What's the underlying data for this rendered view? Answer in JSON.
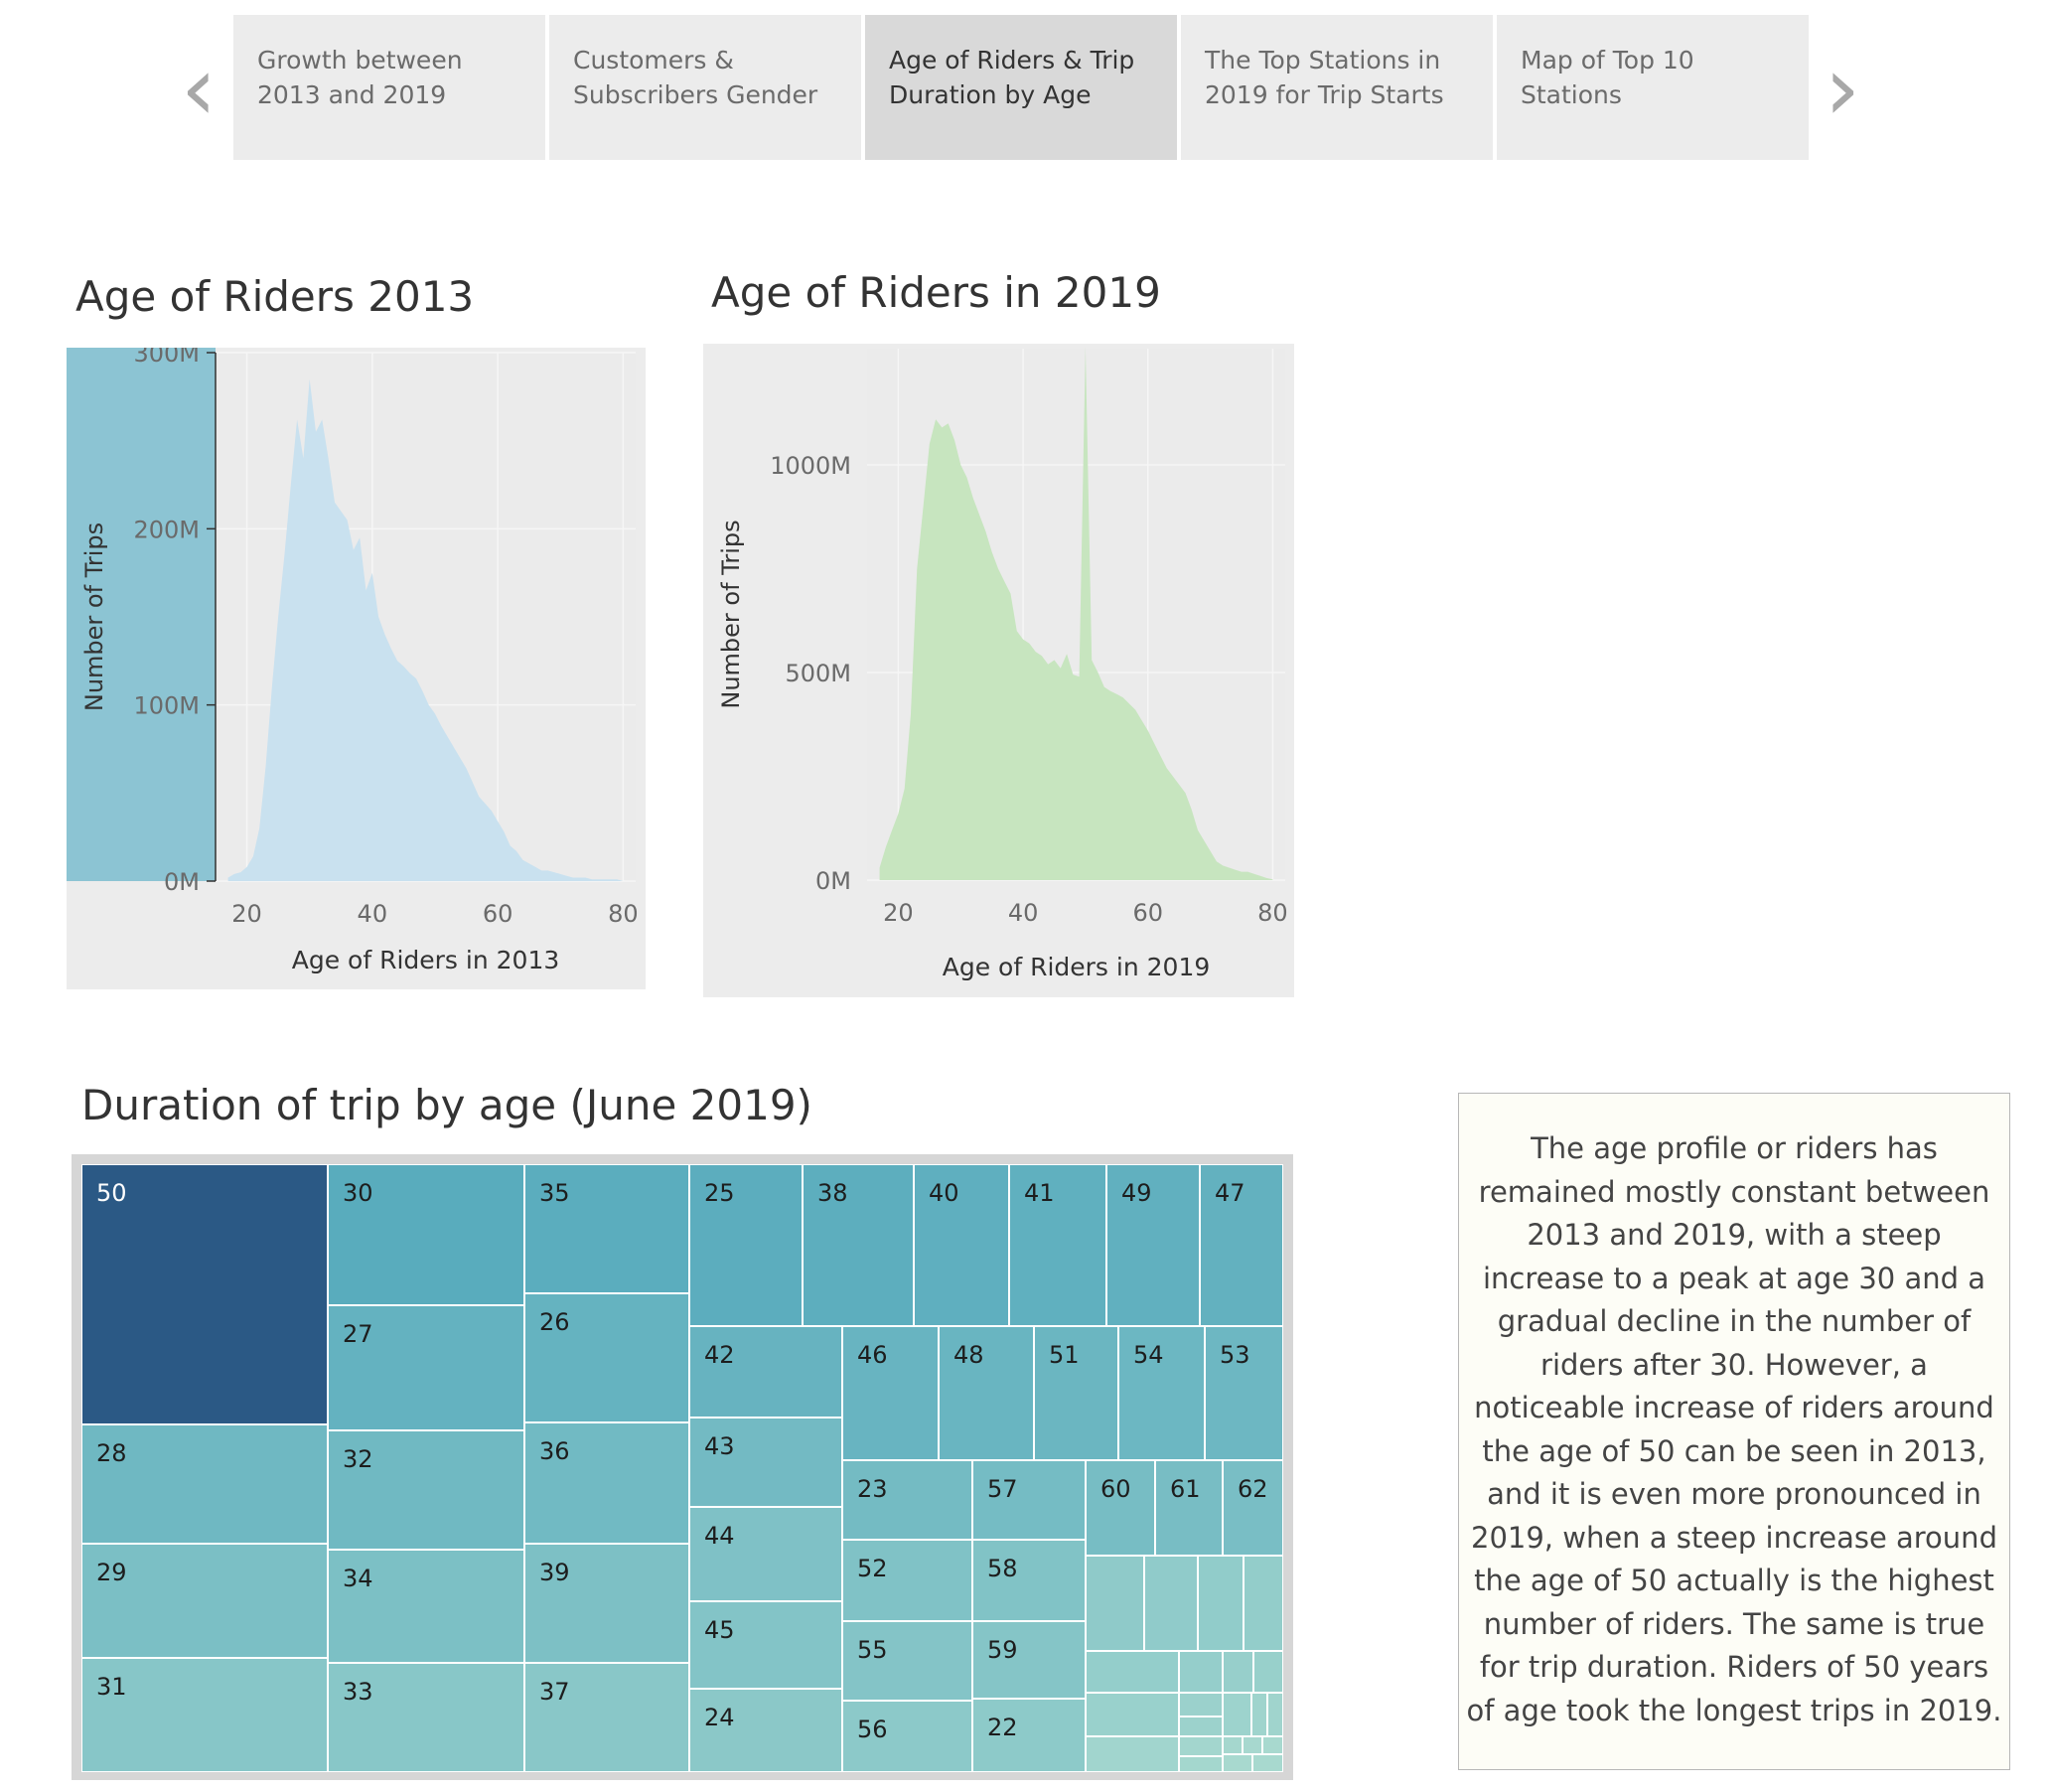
{
  "nav": {
    "prev_icon": "chevron-left-icon",
    "next_icon": "chevron-right-icon",
    "story_points": [
      {
        "label": "Growth between 2013 and  2019",
        "active": false
      },
      {
        "label": "Customers & Subscribers Gender",
        "active": false
      },
      {
        "label": "Age of Riders & Trip Duration by Age",
        "active": true
      },
      {
        "label": "The Top Stations in 2019 for Trip Starts",
        "active": false
      },
      {
        "label": "Map of Top 10 Stations",
        "active": false
      }
    ]
  },
  "chart_data": [
    {
      "type": "area",
      "title": "Age of Riders 2013",
      "xlabel": "Age of Riders in 2013",
      "ylabel": "Number of Trips",
      "xlim": [
        15,
        82
      ],
      "ylim": [
        0,
        300
      ],
      "xticks": [
        "20",
        "40",
        "60",
        "80"
      ],
      "yticks": [
        "0M",
        "100M",
        "200M",
        "300M"
      ],
      "color": "#c9e1ef",
      "highlight_color": "#8cc4d3",
      "grid": true,
      "x": [
        17,
        18,
        19,
        20,
        21,
        22,
        23,
        24,
        25,
        26,
        27,
        28,
        29,
        30,
        31,
        32,
        33,
        34,
        35,
        36,
        37,
        38,
        39,
        40,
        41,
        42,
        43,
        44,
        45,
        46,
        47,
        48,
        49,
        50,
        51,
        52,
        53,
        54,
        55,
        56,
        57,
        58,
        59,
        60,
        61,
        62,
        63,
        64,
        65,
        66,
        67,
        68,
        69,
        70,
        71,
        72,
        73,
        74,
        75,
        76,
        77,
        78,
        79,
        80
      ],
      "y": [
        2,
        4,
        5,
        8,
        14,
        30,
        65,
        110,
        150,
        185,
        225,
        262,
        240,
        285,
        255,
        262,
        240,
        215,
        210,
        205,
        188,
        195,
        165,
        175,
        150,
        140,
        132,
        125,
        122,
        118,
        115,
        108,
        100,
        95,
        88,
        82,
        76,
        70,
        64,
        56,
        48,
        44,
        40,
        34,
        28,
        20,
        17,
        12,
        10,
        8,
        6,
        6,
        5,
        4,
        3,
        2,
        2,
        2,
        1,
        1,
        1,
        1,
        1,
        0
      ]
    },
    {
      "type": "area",
      "title": "Age of Riders in 2019",
      "xlabel": "Age of Riders in 2019",
      "ylabel": "Number of Trips",
      "xlim": [
        15,
        82
      ],
      "ylim": [
        0,
        1280
      ],
      "xticks": [
        "20",
        "40",
        "60",
        "80"
      ],
      "yticks": [
        "0M",
        "500M",
        "1000M"
      ],
      "color": "#c7e5bf",
      "grid": true,
      "x": [
        17,
        18,
        19,
        20,
        21,
        22,
        23,
        24,
        25,
        26,
        27,
        28,
        29,
        30,
        31,
        32,
        33,
        34,
        35,
        36,
        37,
        38,
        39,
        40,
        41,
        42,
        43,
        44,
        45,
        46,
        47,
        48,
        49,
        50,
        51,
        52,
        53,
        54,
        55,
        56,
        57,
        58,
        59,
        60,
        61,
        62,
        63,
        64,
        65,
        66,
        67,
        68,
        69,
        70,
        71,
        72,
        73,
        74,
        75,
        76,
        77,
        78,
        79,
        80
      ],
      "y": [
        30,
        80,
        120,
        160,
        220,
        400,
        750,
        900,
        1050,
        1110,
        1090,
        1100,
        1060,
        1000,
        970,
        920,
        880,
        840,
        790,
        750,
        720,
        690,
        600,
        580,
        570,
        550,
        540,
        520,
        530,
        510,
        545,
        495,
        490,
        1285,
        530,
        500,
        465,
        455,
        448,
        440,
        425,
        410,
        385,
        360,
        330,
        300,
        270,
        250,
        230,
        210,
        170,
        120,
        95,
        70,
        45,
        35,
        30,
        25,
        20,
        20,
        15,
        10,
        5,
        2
      ]
    },
    {
      "type": "treemap",
      "title": "Duration of trip by age (June 2019)",
      "labels": [
        "50",
        "30",
        "35",
        "25",
        "38",
        "40",
        "41",
        "49",
        "47",
        "27",
        "26",
        "42",
        "46",
        "48",
        "51",
        "54",
        "53",
        "28",
        "32",
        "36",
        "43",
        "23",
        "57",
        "60",
        "61",
        "62",
        "29",
        "34",
        "39",
        "44",
        "52",
        "58",
        "45",
        "55",
        "59",
        "31",
        "33",
        "37",
        "24",
        "56",
        "22"
      ],
      "color_low": "#a8d9cf",
      "color_mid": "#58abbd",
      "color_high": "#2b5985"
    }
  ],
  "annotation": {
    "lines": [
      "The age profile or riders has",
      "remained mostly constant between",
      "2013 and 2019, with a steep",
      "increase to a peak at age 30 and a",
      "gradual decline in the number of",
      "riders after 30. However, a",
      "noticeable increase of riders around",
      "the age of 50 can be seen in 2013,",
      "and it is even more pronounced in",
      "2019, when a steep increase around",
      "the age of 50 actually is the highest",
      "number of riders.  The same is true",
      "for trip duration. Riders of 50 years",
      "of age took the longest trips in 2019."
    ]
  }
}
